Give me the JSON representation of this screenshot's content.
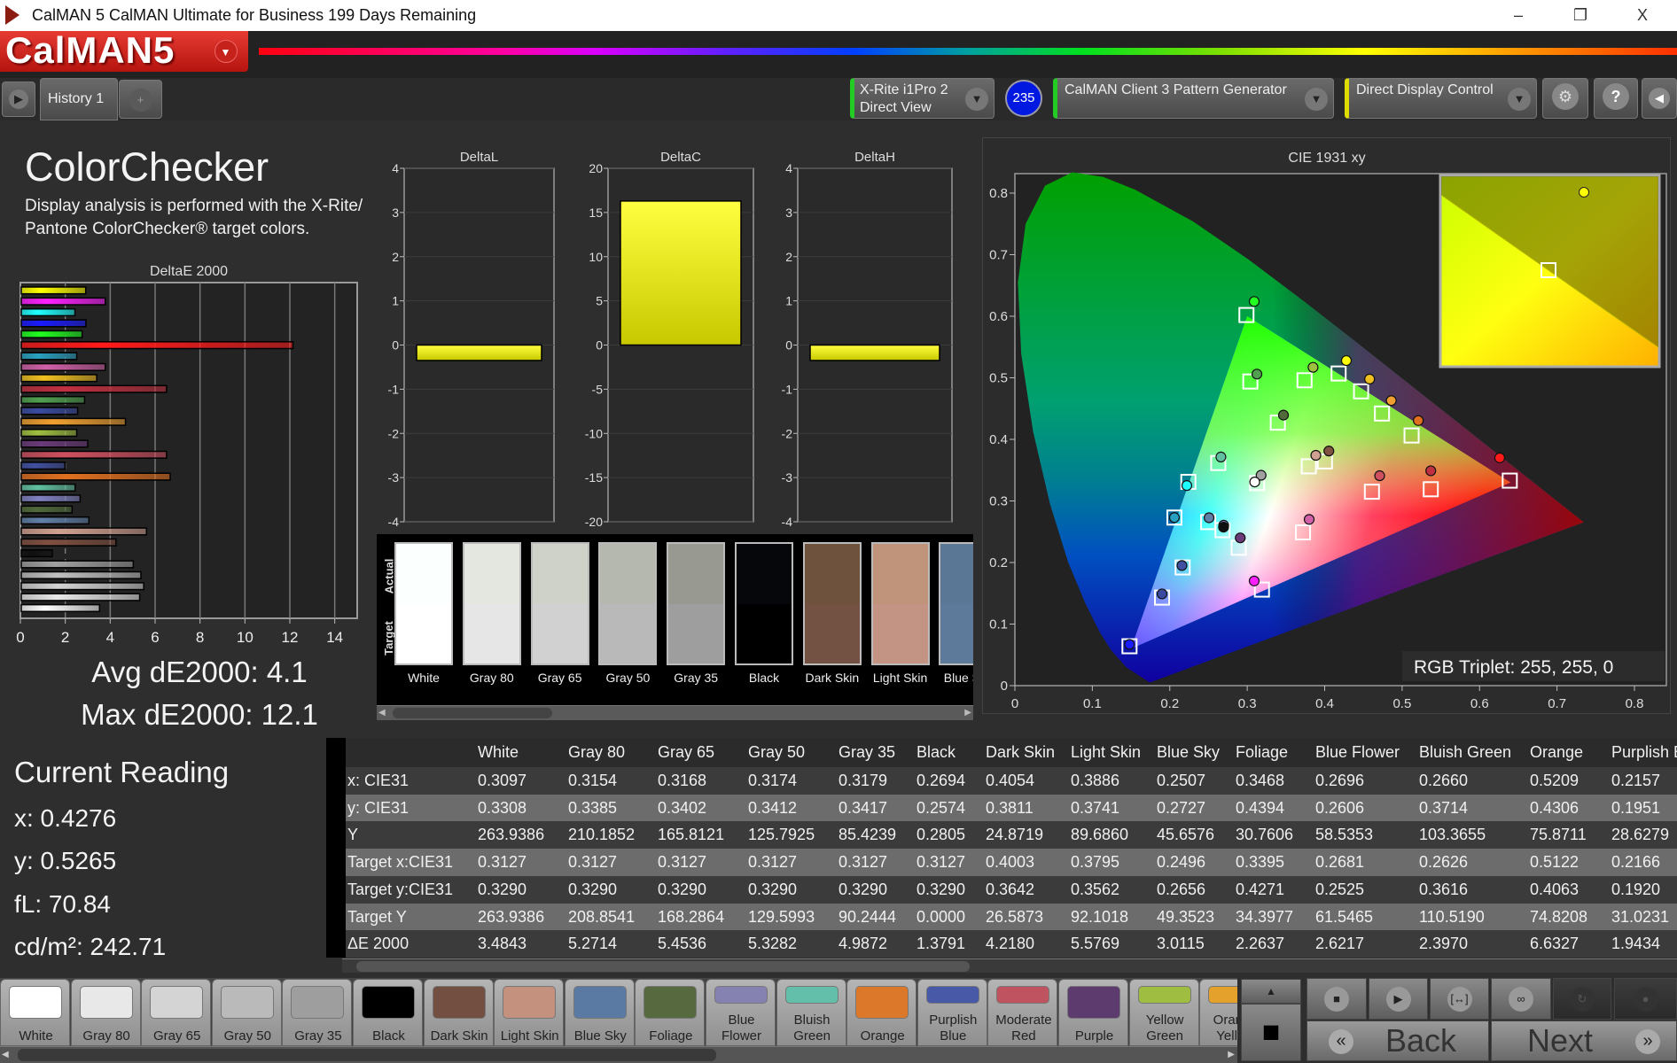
{
  "window": {
    "title": "CalMAN 5 CalMAN Ultimate for Business 199 Days Remaining",
    "minimize": "–",
    "restore": "❐",
    "close": "X"
  },
  "logo": {
    "text": "CalMAN5",
    "menu_icon": "chevron-down-icon"
  },
  "toolbar": {
    "tab": "History 1",
    "add_tab": "+",
    "meter_line1": "X-Rite i1Pro 2",
    "meter_line2": "Direct View",
    "meter_badge": "235",
    "pattern_gen": "CalMAN Client 3 Pattern Generator",
    "display_control": "Direct Display Control",
    "help": "?",
    "status_colors": {
      "meter": "#22cc22",
      "pattern": "#22cc22",
      "display": "#dddd00"
    }
  },
  "left": {
    "title": "ColorChecker",
    "description": "Display analysis is performed with the X-Rite/ Pantone ColorChecker® target colors.",
    "avg": "Avg dE2000: 4.1",
    "max": "Max dE2000: 12.1",
    "reading_title": "Current Reading",
    "reading_x": "x: 0.4276",
    "reading_y": "y: 0.5265",
    "reading_fl": "fL: 70.84",
    "reading_cd": "cd/m²: 242.71"
  },
  "chart_data": [
    {
      "type": "bar",
      "orientation": "horizontal",
      "title": "DeltaE 2000",
      "xlim": [
        0,
        15
      ],
      "xticks": [
        "0",
        "2",
        "4",
        "6",
        "8",
        "10",
        "12",
        "14"
      ],
      "grid": true,
      "values": [
        2.87,
        3.74,
        2.39,
        2.88,
        2.71,
        12.1,
        2.47,
        3.74,
        3.36,
        6.47,
        2.82,
        2.51,
        4.64,
        2.47,
        2.96,
        6.47,
        1.9434,
        6.6327,
        2.397,
        2.6217,
        2.2637,
        3.0115,
        5.5769,
        4.218,
        1.3791,
        4.9872,
        5.3282,
        5.4536,
        5.2714,
        3.4843
      ],
      "colors": [
        "#ffff00",
        "#ff20ff",
        "#20ffff",
        "#1a1aff",
        "#20ff20",
        "#ff1a1a",
        "#2aa0c0",
        "#d060a8",
        "#f0c020",
        "#c03040",
        "#50a050",
        "#3a4aa0",
        "#f0a030",
        "#a0c040",
        "#6a3a7a",
        "#d05060",
        "#4050a0",
        "#e07020",
        "#60c0a0",
        "#8080c0",
        "#506a3a",
        "#6080a8",
        "#d0a090",
        "#805040",
        "#101010",
        "#a0a0a0",
        "#c0c0c0",
        "#d4d4d4",
        "#e8e8e8",
        "#ffffff"
      ]
    },
    {
      "type": "bar",
      "title": "DeltaL",
      "ylim": [
        -4,
        4
      ],
      "yticks": [
        "4",
        "3",
        "2",
        "1",
        "0",
        "-1",
        "-2",
        "-3",
        "-4"
      ],
      "values": [
        -0.35
      ],
      "color": "#ffff00"
    },
    {
      "type": "bar",
      "title": "DeltaC",
      "ylim": [
        -20,
        20
      ],
      "yticks": [
        "20",
        "15",
        "10",
        "5",
        "0",
        "-5",
        "-10",
        "-15",
        "-20"
      ],
      "values": [
        16.3
      ],
      "color": "#ffff00"
    },
    {
      "type": "bar",
      "title": "DeltaH",
      "ylim": [
        -4,
        4
      ],
      "yticks": [
        "4",
        "3",
        "2",
        "1",
        "0",
        "-1",
        "-2",
        "-3",
        "-4"
      ],
      "values": [
        -0.35
      ],
      "color": "#ffff00"
    },
    {
      "type": "scatter",
      "title": "CIE 1931 xy",
      "xlim": [
        0,
        0.84
      ],
      "ylim": [
        0,
        0.84
      ],
      "xticks": [
        "0",
        "0.1",
        "0.2",
        "0.3",
        "0.4",
        "0.5",
        "0.6",
        "0.7",
        "0.8"
      ],
      "yticks": [
        "0",
        "0.1",
        "0.2",
        "0.3",
        "0.4",
        "0.5",
        "0.6",
        "0.7",
        "0.8"
      ],
      "gamut_target": [
        [
          0.64,
          0.33
        ],
        [
          0.3,
          0.6
        ],
        [
          0.15,
          0.06
        ]
      ],
      "actual": [
        {
          "x": 0.309,
          "y": 0.624,
          "color": "#20ff20"
        },
        {
          "x": 0.3125,
          "y": 0.506,
          "color": "#50a050"
        },
        {
          "x": 0.385,
          "y": 0.517,
          "color": "#a0c040"
        },
        {
          "x": 0.428,
          "y": 0.528,
          "color": "#ffff00"
        },
        {
          "x": 0.458,
          "y": 0.498,
          "color": "#f0c020"
        },
        {
          "x": 0.486,
          "y": 0.463,
          "color": "#f0a030"
        },
        {
          "x": 0.5209,
          "y": 0.4306,
          "color": "#e07020"
        },
        {
          "x": 0.626,
          "y": 0.37,
          "color": "#ff1a1a"
        },
        {
          "x": 0.537,
          "y": 0.349,
          "color": "#c03040"
        },
        {
          "x": 0.471,
          "y": 0.341,
          "color": "#d05060"
        },
        {
          "x": 0.4054,
          "y": 0.3811,
          "color": "#805040"
        },
        {
          "x": 0.3886,
          "y": 0.3741,
          "color": "#d0a090"
        },
        {
          "x": 0.3468,
          "y": 0.4394,
          "color": "#506a3a"
        },
        {
          "x": 0.266,
          "y": 0.3714,
          "color": "#60c0a0"
        },
        {
          "x": 0.3179,
          "y": 0.3417,
          "color": "#a0a0a0"
        },
        {
          "x": 0.3097,
          "y": 0.3308,
          "color": "#ffffff"
        },
        {
          "x": 0.222,
          "y": 0.325,
          "color": "#20ffff"
        },
        {
          "x": 0.206,
          "y": 0.273,
          "color": "#2aa0c0"
        },
        {
          "x": 0.2507,
          "y": 0.2727,
          "color": "#6080a8"
        },
        {
          "x": 0.2696,
          "y": 0.2606,
          "color": "#8080c0"
        },
        {
          "x": 0.2694,
          "y": 0.2574,
          "color": "#101010"
        },
        {
          "x": 0.291,
          "y": 0.24,
          "color": "#6a3a7a"
        },
        {
          "x": 0.38,
          "y": 0.27,
          "color": "#d060a8"
        },
        {
          "x": 0.2157,
          "y": 0.1951,
          "color": "#4050a0"
        },
        {
          "x": 0.19,
          "y": 0.149,
          "color": "#3a4aa0"
        },
        {
          "x": 0.309,
          "y": 0.17,
          "color": "#ff20ff"
        },
        {
          "x": 0.148,
          "y": 0.067,
          "color": "#1a1aff"
        }
      ],
      "target": [
        {
          "x": 0.299,
          "y": 0.602
        },
        {
          "x": 0.304,
          "y": 0.494
        },
        {
          "x": 0.374,
          "y": 0.496
        },
        {
          "x": 0.418,
          "y": 0.507
        },
        {
          "x": 0.447,
          "y": 0.478
        },
        {
          "x": 0.474,
          "y": 0.442
        },
        {
          "x": 0.5122,
          "y": 0.4063
        },
        {
          "x": 0.639,
          "y": 0.333
        },
        {
          "x": 0.537,
          "y": 0.319
        },
        {
          "x": 0.461,
          "y": 0.315
        },
        {
          "x": 0.4003,
          "y": 0.3642
        },
        {
          "x": 0.3795,
          "y": 0.3562
        },
        {
          "x": 0.3395,
          "y": 0.4271
        },
        {
          "x": 0.2626,
          "y": 0.3616
        },
        {
          "x": 0.3127,
          "y": 0.329
        },
        {
          "x": 0.224,
          "y": 0.331
        },
        {
          "x": 0.206,
          "y": 0.273
        },
        {
          "x": 0.2496,
          "y": 0.2656
        },
        {
          "x": 0.2681,
          "y": 0.2525
        },
        {
          "x": 0.289,
          "y": 0.224
        },
        {
          "x": 0.372,
          "y": 0.249
        },
        {
          "x": 0.2166,
          "y": 0.192
        },
        {
          "x": 0.19,
          "y": 0.143
        },
        {
          "x": 0.319,
          "y": 0.156
        },
        {
          "x": 0.148,
          "y": 0.064
        }
      ],
      "inset_label": "RGB Triplet: 255, 255, 0"
    }
  ],
  "swatches": {
    "actual_label": "Actual",
    "target_label": "Target",
    "items": [
      {
        "name": "White",
        "actual": "#fbfffe",
        "target": "#ffffff"
      },
      {
        "name": "Gray 80",
        "actual": "#e4e7df",
        "target": "#e6e6e6"
      },
      {
        "name": "Gray 65",
        "actual": "#cfd2c9",
        "target": "#d1d1d1"
      },
      {
        "name": "Gray 50",
        "actual": "#b5b8ae",
        "target": "#b9b9b9"
      },
      {
        "name": "Gray 35",
        "actual": "#989990",
        "target": "#9e9e9e"
      },
      {
        "name": "Black",
        "actual": "#06070a",
        "target": "#000000"
      },
      {
        "name": "Dark Skin",
        "actual": "#6f523d",
        "target": "#735244"
      },
      {
        "name": "Light Skin",
        "actual": "#c0947a",
        "target": "#c39383"
      },
      {
        "name": "Blue Sky",
        "actual": "#5b7796",
        "target": "#5d7a9b"
      }
    ]
  },
  "table": {
    "columns": [
      "White",
      "Gray 80",
      "Gray 65",
      "Gray 50",
      "Gray 35",
      "Black",
      "Dark Skin",
      "Light Skin",
      "Blue Sky",
      "Foliage",
      "Blue Flower",
      "Bluish Green",
      "Orange",
      "Purplish Blue"
    ],
    "rows": [
      {
        "label": "x: CIE31",
        "values": [
          "0.3097",
          "0.3154",
          "0.3168",
          "0.3174",
          "0.3179",
          "0.2694",
          "0.4054",
          "0.3886",
          "0.2507",
          "0.3468",
          "0.2696",
          "0.2660",
          "0.5209",
          "0.2157"
        ]
      },
      {
        "label": "y: CIE31",
        "values": [
          "0.3308",
          "0.3385",
          "0.3402",
          "0.3412",
          "0.3417",
          "0.2574",
          "0.3811",
          "0.3741",
          "0.2727",
          "0.4394",
          "0.2606",
          "0.3714",
          "0.4306",
          "0.1951"
        ]
      },
      {
        "label": "Y",
        "values": [
          "263.9386",
          "210.1852",
          "165.8121",
          "125.7925",
          "85.4239",
          "0.2805",
          "24.8719",
          "89.6860",
          "45.6576",
          "30.7606",
          "58.5353",
          "103.3655",
          "75.8711",
          "28.6279"
        ]
      },
      {
        "label": "Target x:CIE31",
        "values": [
          "0.3127",
          "0.3127",
          "0.3127",
          "0.3127",
          "0.3127",
          "0.3127",
          "0.4003",
          "0.3795",
          "0.2496",
          "0.3395",
          "0.2681",
          "0.2626",
          "0.5122",
          "0.2166"
        ]
      },
      {
        "label": "Target y:CIE31",
        "values": [
          "0.3290",
          "0.3290",
          "0.3290",
          "0.3290",
          "0.3290",
          "0.3290",
          "0.3642",
          "0.3562",
          "0.2656",
          "0.4271",
          "0.2525",
          "0.3616",
          "0.4063",
          "0.1920"
        ]
      },
      {
        "label": "Target Y",
        "values": [
          "263.9386",
          "208.8541",
          "168.2864",
          "129.5993",
          "90.2444",
          "0.0000",
          "26.5873",
          "92.1018",
          "49.3523",
          "34.3977",
          "61.5465",
          "110.5190",
          "74.8208",
          "31.0231"
        ]
      },
      {
        "label": "ΔE 2000",
        "values": [
          "3.4843",
          "5.2714",
          "5.4536",
          "5.3282",
          "4.9872",
          "1.3791",
          "4.2180",
          "5.5769",
          "3.0115",
          "2.2637",
          "2.6217",
          "2.3970",
          "6.6327",
          "1.9434"
        ]
      }
    ]
  },
  "patches": [
    {
      "line1": "White",
      "line2": "",
      "color": "#ffffff"
    },
    {
      "line1": "Gray 80",
      "line2": "",
      "color": "#e8e8e8"
    },
    {
      "line1": "Gray 65",
      "line2": "",
      "color": "#d4d4d4"
    },
    {
      "line1": "Gray 50",
      "line2": "",
      "color": "#bababa"
    },
    {
      "line1": "Gray 35",
      "line2": "",
      "color": "#9e9e9e"
    },
    {
      "line1": "Black",
      "line2": "",
      "color": "#000000"
    },
    {
      "line1": "Dark Skin",
      "line2": "",
      "color": "#734f42"
    },
    {
      "line1": "Light Skin",
      "line2": "",
      "color": "#c4917f"
    },
    {
      "line1": "Blue Sky",
      "line2": "",
      "color": "#5a7aa4"
    },
    {
      "line1": "Foliage",
      "line2": "",
      "color": "#56693f"
    },
    {
      "line1": "Blue",
      "line2": "Flower",
      "color": "#8582b2"
    },
    {
      "line1": "Bluish",
      "line2": "Green",
      "color": "#63bfa9"
    },
    {
      "line1": "Orange",
      "line2": "",
      "color": "#dc782a"
    },
    {
      "line1": "Purplish",
      "line2": "Blue",
      "color": "#4859a8"
    },
    {
      "line1": "Moderate",
      "line2": "Red",
      "color": "#c05360"
    },
    {
      "line1": "Purple",
      "line2": "",
      "color": "#5d3b6e"
    },
    {
      "line1": "Yellow",
      "line2": "Green",
      "color": "#9fbd40"
    },
    {
      "line1": "Orange",
      "line2": "Yellow",
      "color": "#e4a12b"
    }
  ],
  "controls": {
    "buttons": [
      "stop-icon",
      "play-icon",
      "bracket-icon",
      "infinity-icon",
      "refresh-icon",
      "record-icon"
    ],
    "glyphs": [
      "■",
      "▶",
      "[↔]",
      "∞",
      "↻",
      "●"
    ],
    "up": "▲",
    "stop_toggle": "■",
    "back": "Back",
    "next": "Next",
    "back_chevron": "«",
    "next_chevron": "»"
  }
}
